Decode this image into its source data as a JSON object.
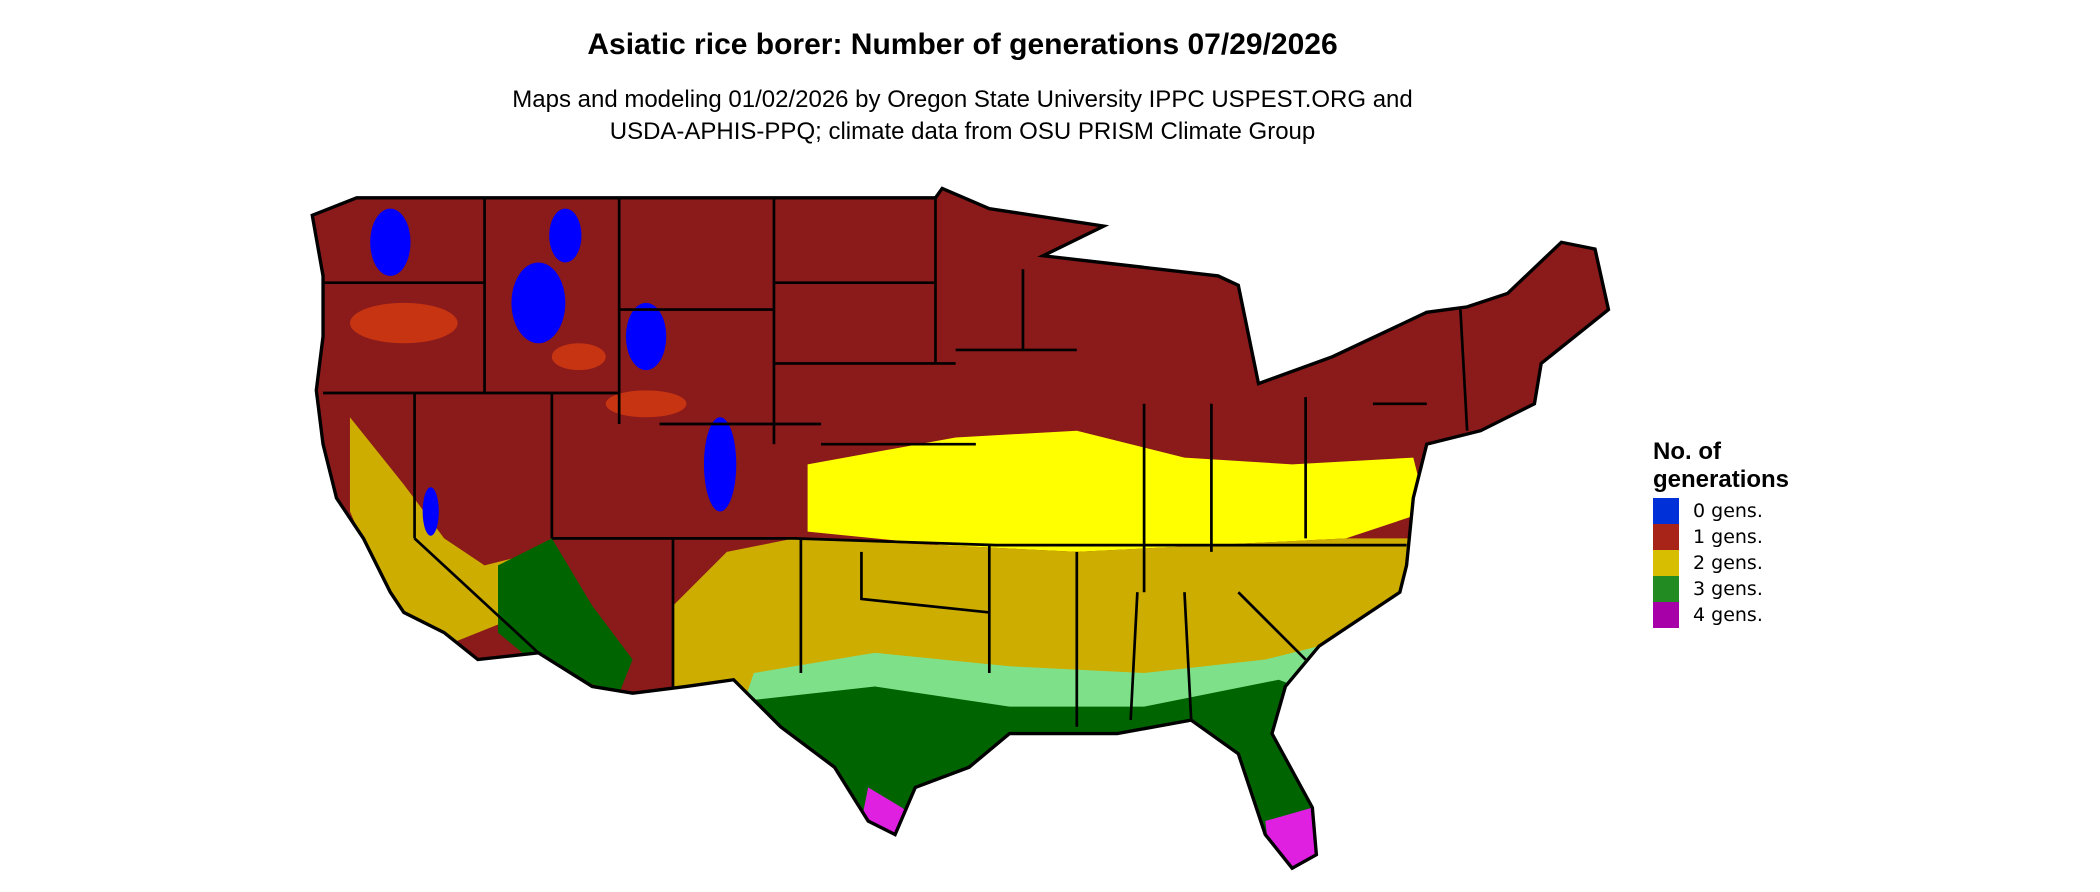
{
  "title": "Asiatic rice borer: Number of generations 07/29/2026",
  "subtitle_line1": "Maps and modeling 01/02/2026 by Oregon State University IPPC USPEST.ORG and",
  "subtitle_line2": "USDA-APHIS-PPQ; climate data from OSU PRISM Climate Group",
  "legend": {
    "title": "No. of generations",
    "items": [
      {
        "label": "0 gens.",
        "color": "#0030d8"
      },
      {
        "label": "1 gens.",
        "color": "#a82318"
      },
      {
        "label": "2 gens.",
        "color": "#d8be00"
      },
      {
        "label": "3 gens.",
        "color": "#228b22"
      },
      {
        "label": "4 gens.",
        "color": "#a800a8"
      }
    ]
  },
  "map_colors": {
    "one_gen": "#8b1a1a",
    "one_gen_high": "#e04010",
    "two_gen_low": "#ffff00",
    "two_gen": "#cdad00",
    "three_gen_low": "#7fe08a",
    "three_gen": "#006400",
    "four_gen": "#e020e0",
    "zero_gen": "#0000ff"
  }
}
